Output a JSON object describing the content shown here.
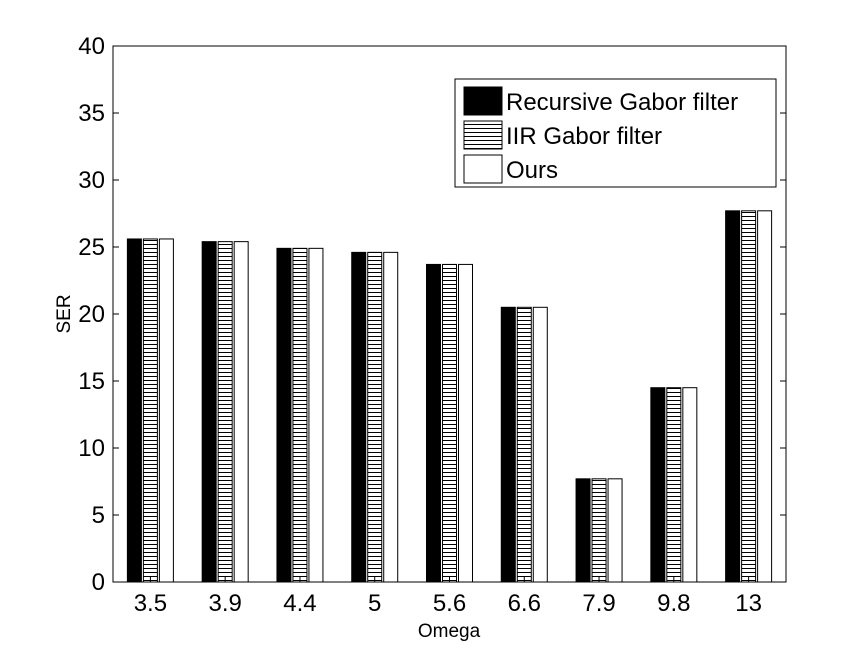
{
  "chart_data": {
    "type": "bar",
    "xlabel": "Omega",
    "ylabel": "SER",
    "categories": [
      "3.5",
      "3.9",
      "4.4",
      "5",
      "5.6",
      "6.6",
      "7.9",
      "9.8",
      "13"
    ],
    "ylim": [
      0,
      40
    ],
    "yticks": [
      "0",
      "5",
      "10",
      "15",
      "20",
      "25",
      "30",
      "35",
      "40"
    ],
    "grid": false,
    "legend_position": "top-right",
    "series": [
      {
        "name": "Recursive Gabor filter",
        "fill": "solid-black",
        "color": "#000000",
        "values": [
          25.6,
          25.4,
          24.9,
          24.6,
          23.7,
          20.5,
          7.7,
          14.5,
          27.7
        ]
      },
      {
        "name": "IIR Gabor filter",
        "fill": "horizontal-stripes",
        "color": "#000000",
        "values": [
          25.6,
          25.4,
          24.9,
          24.6,
          23.7,
          20.5,
          7.7,
          14.5,
          27.7
        ]
      },
      {
        "name": "Ours",
        "fill": "white",
        "color": "#ffffff",
        "values": [
          25.6,
          25.4,
          24.9,
          24.6,
          23.7,
          20.5,
          7.7,
          14.5,
          27.7
        ]
      }
    ]
  }
}
